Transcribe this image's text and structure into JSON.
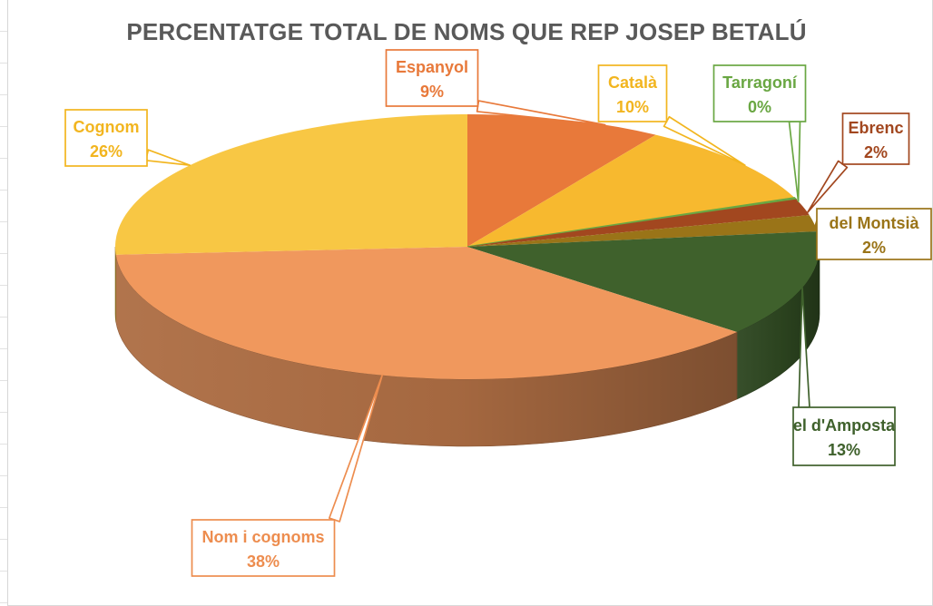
{
  "chart_data": {
    "type": "pie",
    "title": "PERCENTATGE TOTAL DE NOMS QUE REP JOSEP BETALÚ",
    "slices": [
      {
        "label": "Espanyol",
        "value": 9,
        "display": "9%",
        "color": "#e8793a"
      },
      {
        "label": "Català",
        "value": 10,
        "display": "10%",
        "color": "#f7b92f"
      },
      {
        "label": "Tarragoní",
        "value": 0.2,
        "display": "0%",
        "color": "#6aa743"
      },
      {
        "label": "Ebrenc",
        "value": 2,
        "display": "2%",
        "color": "#a2471f"
      },
      {
        "label": "del Montsià",
        "value": 2,
        "display": "2%",
        "color": "#9a7418"
      },
      {
        "label": "el d'Amposta",
        "value": 13,
        "display": "13%",
        "color": "#3f612c"
      },
      {
        "label": "Nom i cognoms",
        "value": 38,
        "display": "38%",
        "color": "#f0985d"
      },
      {
        "label": "Cognom",
        "value": 26,
        "display": "26%",
        "color": "#f8c744"
      }
    ],
    "label_colors": {
      "Espanyol": "#e8793a",
      "Català": "#f2b51f",
      "Tarragoní": "#6aa743",
      "Ebrenc": "#a2471f",
      "del Montsià": "#9a7418",
      "el d'Amposta": "#3f612c",
      "Nom i cognoms": "#ed8d4f",
      "Cognom": "#f2b51f"
    }
  }
}
